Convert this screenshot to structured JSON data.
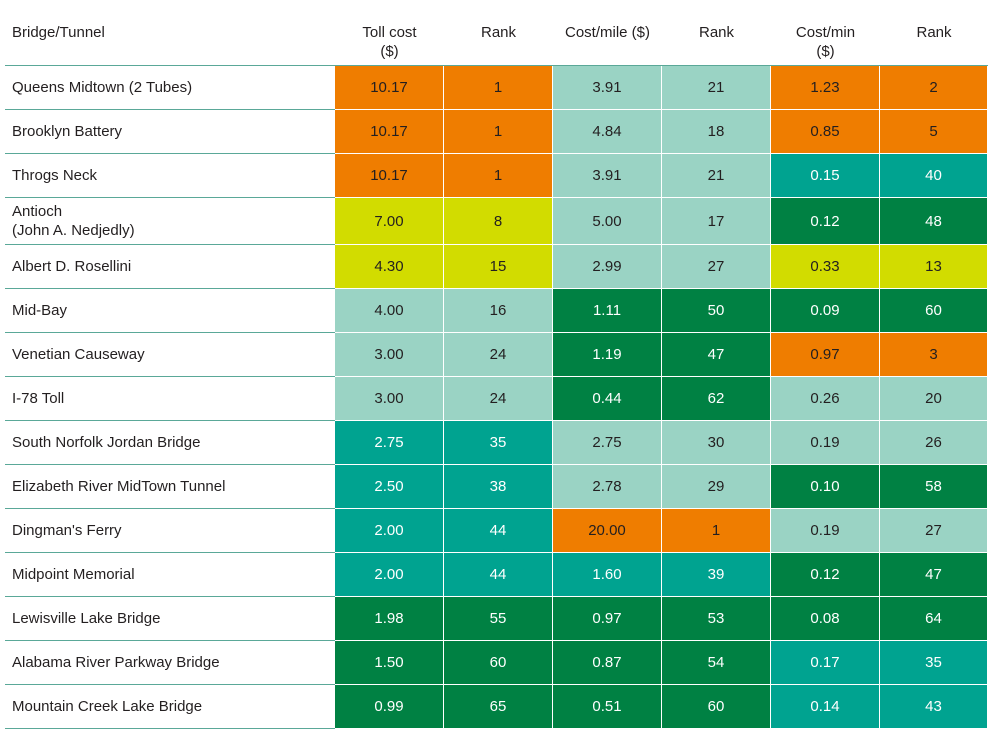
{
  "colors": {
    "orange": "#ef7d00",
    "yellow": "#d2dc00",
    "lightteal": "#9ad3c4",
    "teal": "#00a390",
    "green": "#008143",
    "rule": "#5aa898"
  },
  "header": {
    "name": "Bridge/Tunnel",
    "toll_line1": "Toll cost",
    "toll_line2": "($)",
    "rank": "Rank",
    "mile": "Cost/mile ($)",
    "min_line1": "Cost/min",
    "min_line2": "($)"
  },
  "rows": [
    {
      "name": "Queens Midtown (2 Tubes)",
      "toll": "10.17",
      "toll_rank": "1",
      "toll_color": "orange",
      "mile": "3.91",
      "mile_rank": "21",
      "mile_color": "lightteal",
      "min": "1.23",
      "min_rank": "2",
      "min_color": "orange"
    },
    {
      "name": "Brooklyn Battery",
      "toll": "10.17",
      "toll_rank": "1",
      "toll_color": "orange",
      "mile": "4.84",
      "mile_rank": "18",
      "mile_color": "lightteal",
      "min": "0.85",
      "min_rank": "5",
      "min_color": "orange"
    },
    {
      "name": "Throgs Neck",
      "toll": "10.17",
      "toll_rank": "1",
      "toll_color": "orange",
      "mile": "3.91",
      "mile_rank": "21",
      "mile_color": "lightteal",
      "min": "0.15",
      "min_rank": "40",
      "min_color": "teal"
    },
    {
      "name": "Antioch",
      "name_line2": "(John A. Nedjedly)",
      "toll": "7.00",
      "toll_rank": "8",
      "toll_color": "yellow",
      "mile": "5.00",
      "mile_rank": "17",
      "mile_color": "lightteal",
      "min": "0.12",
      "min_rank": "48",
      "min_color": "green"
    },
    {
      "name": "Albert D. Rosellini",
      "toll": "4.30",
      "toll_rank": "15",
      "toll_color": "yellow",
      "mile": "2.99",
      "mile_rank": "27",
      "mile_color": "lightteal",
      "min": "0.33",
      "min_rank": "13",
      "min_color": "yellow"
    },
    {
      "name": "Mid-Bay",
      "toll": "4.00",
      "toll_rank": "16",
      "toll_color": "lightteal",
      "mile": "1.11",
      "mile_rank": "50",
      "mile_color": "green",
      "min": "0.09",
      "min_rank": "60",
      "min_color": "green"
    },
    {
      "name": "Venetian Causeway",
      "toll": "3.00",
      "toll_rank": "24",
      "toll_color": "lightteal",
      "mile": "1.19",
      "mile_rank": "47",
      "mile_color": "green",
      "min": "0.97",
      "min_rank": "3",
      "min_color": "orange"
    },
    {
      "name": "I-78 Toll",
      "toll": "3.00",
      "toll_rank": "24",
      "toll_color": "lightteal",
      "mile": "0.44",
      "mile_rank": "62",
      "mile_color": "green",
      "min": "0.26",
      "min_rank": "20",
      "min_color": "lightteal"
    },
    {
      "name": "South Norfolk Jordan Bridge",
      "toll": "2.75",
      "toll_rank": "35",
      "toll_color": "teal",
      "mile": "2.75",
      "mile_rank": "30",
      "mile_color": "lightteal",
      "min": "0.19",
      "min_rank": "26",
      "min_color": "lightteal"
    },
    {
      "name": "Elizabeth River MidTown Tunnel",
      "toll": "2.50",
      "toll_rank": "38",
      "toll_color": "teal",
      "mile": "2.78",
      "mile_rank": "29",
      "mile_color": "lightteal",
      "min": "0.10",
      "min_rank": "58",
      "min_color": "green"
    },
    {
      "name": "Dingman's Ferry",
      "toll": "2.00",
      "toll_rank": "44",
      "toll_color": "teal",
      "mile": "20.00",
      "mile_rank": "1",
      "mile_color": "orange",
      "min": "0.19",
      "min_rank": "27",
      "min_color": "lightteal"
    },
    {
      "name": "Midpoint Memorial",
      "toll": "2.00",
      "toll_rank": "44",
      "toll_color": "teal",
      "mile": "1.60",
      "mile_rank": "39",
      "mile_color": "teal",
      "min": "0.12",
      "min_rank": "47",
      "min_color": "green"
    },
    {
      "name": "Lewisville Lake Bridge",
      "toll": "1.98",
      "toll_rank": "55",
      "toll_color": "green",
      "mile": "0.97",
      "mile_rank": "53",
      "mile_color": "green",
      "min": "0.08",
      "min_rank": "64",
      "min_color": "green"
    },
    {
      "name": "Alabama River Parkway Bridge",
      "toll": "1.50",
      "toll_rank": "60",
      "toll_color": "green",
      "mile": "0.87",
      "mile_rank": "54",
      "mile_color": "green",
      "min": "0.17",
      "min_rank": "35",
      "min_color": "teal"
    },
    {
      "name": "Mountain Creek Lake Bridge",
      "toll": "0.99",
      "toll_rank": "65",
      "toll_color": "green",
      "mile": "0.51",
      "mile_rank": "60",
      "mile_color": "green",
      "min": "0.14",
      "min_rank": "43",
      "min_color": "teal"
    }
  ]
}
